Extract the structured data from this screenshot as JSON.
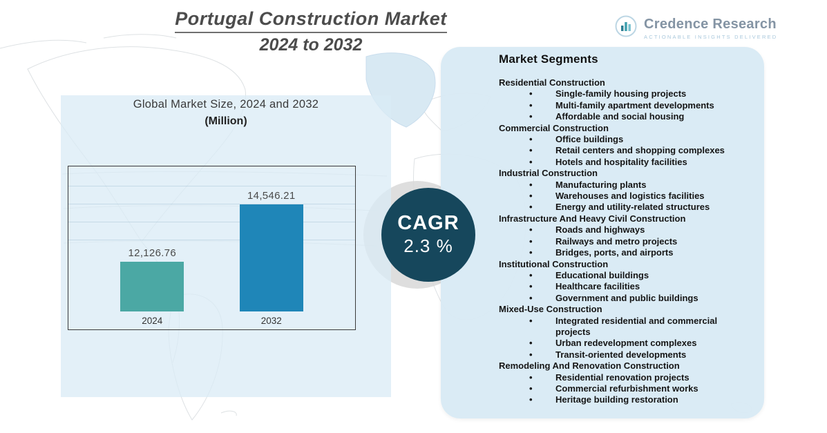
{
  "title": {
    "line1": "Portugal Construction Market",
    "line2": "2024 to 2032"
  },
  "logo": {
    "name": "Credence Research",
    "tagline": "Actionable Insights Delivered"
  },
  "chart_panel": {
    "subtitle": "Global Market Size, 2024 and 2032",
    "unit": "(Million)"
  },
  "chart_data": {
    "type": "bar",
    "title": "Global Market Size, 2024 and 2032 (Million)",
    "categories": [
      "2024",
      "2032"
    ],
    "values": [
      12126.76,
      14546.21
    ],
    "value_labels": [
      "12,126.76",
      "14,546.21"
    ],
    "ylim": [
      10000,
      15000
    ],
    "bar_colors": [
      "#4BA8A4",
      "#1F86B8"
    ],
    "grid": true,
    "legend": false,
    "xlabel": "",
    "ylabel": ""
  },
  "cagr": {
    "label": "CAGR",
    "value": "2.3 %"
  },
  "segments": {
    "heading": "Market Segments",
    "groups": [
      {
        "name": "Residential Construction",
        "items": [
          "Single-family housing projects",
          "Multi-family apartment developments",
          "Affordable and social housing"
        ]
      },
      {
        "name": "Commercial Construction",
        "items": [
          "Office buildings",
          "Retail centers and shopping complexes",
          "Hotels and hospitality facilities"
        ]
      },
      {
        "name": "Industrial Construction",
        "items": [
          "Manufacturing plants",
          "Warehouses and logistics facilities",
          "Energy and utility-related structures"
        ]
      },
      {
        "name": "Infrastructure And Heavy Civil Construction",
        "items": [
          "Roads and highways",
          "Railways and metro projects",
          "Bridges, ports, and airports"
        ]
      },
      {
        "name": "Institutional Construction",
        "items": [
          "Educational buildings",
          "Healthcare facilities",
          "Government and public buildings"
        ]
      },
      {
        "name": "Mixed-Use Construction",
        "items": [
          "Integrated residential and commercial projects",
          "Urban redevelopment complexes",
          "Transit-oriented developments"
        ]
      },
      {
        "name": "Remodeling And Renovation Construction",
        "items": [
          "Residential renovation projects",
          "Commercial refurbishment works",
          "Heritage building restoration"
        ]
      }
    ]
  },
  "colors": {
    "bar_2024": "#4BA8A4",
    "bar_2032": "#1F86B8",
    "cagr_circle": "#16475C",
    "panel_blue": "#D8EAF4",
    "title_gray": "#4C4C4C"
  }
}
